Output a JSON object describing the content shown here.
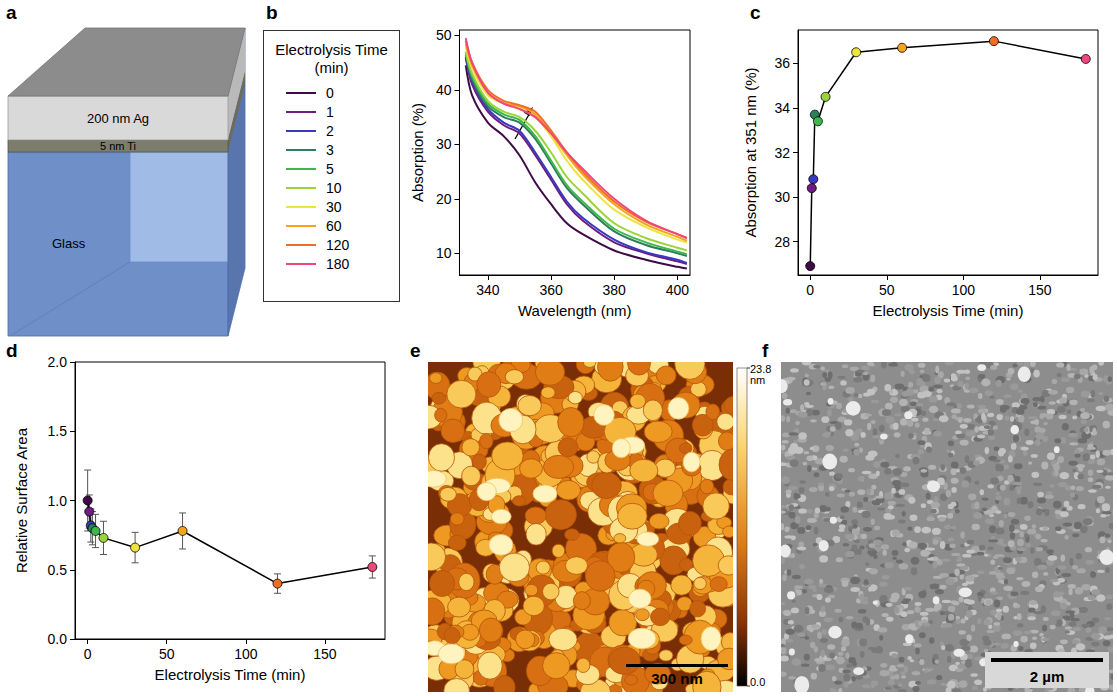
{
  "schematic": {
    "panel": "a",
    "layers": [
      "200 nm Ag",
      "5 nm Ti",
      "Glass"
    ]
  },
  "chart_data": [
    {
      "panel": "b",
      "type": "line",
      "x_label": "Wavelength (nm)",
      "y_label": "Absorption (%)",
      "legend": "left",
      "legend_title": "Electrolysis Time (min)",
      "x": [
        333,
        335,
        340,
        345,
        350,
        355,
        360,
        365,
        370,
        380,
        390,
        400,
        403
      ],
      "series": [
        {
          "name": "0",
          "color": "#3d0b46",
          "values": [
            44.5,
            39,
            34,
            31.5,
            28,
            23,
            19,
            15.5,
            13.5,
            10.5,
            8.8,
            7.5,
            7.2
          ]
        },
        {
          "name": "1",
          "color": "#6e1c80",
          "values": [
            46,
            41,
            36,
            33.5,
            32,
            28,
            23.5,
            19,
            16,
            12,
            10,
            8.5,
            8
          ]
        },
        {
          "name": "2",
          "color": "#3838c0",
          "values": [
            46,
            41.5,
            36.5,
            34,
            32.5,
            28.5,
            24,
            19.5,
            16.5,
            12.5,
            10.2,
            8.8,
            8.2
          ]
        },
        {
          "name": "3",
          "color": "#2e7d5b",
          "values": [
            46.5,
            42,
            37,
            35,
            34,
            31,
            26.5,
            22,
            19,
            14,
            11.5,
            10,
            9.5
          ]
        },
        {
          "name": "5",
          "color": "#3cb84a",
          "values": [
            47,
            42.5,
            37.5,
            35.5,
            34.5,
            31.5,
            27,
            22.5,
            19.5,
            14.5,
            12,
            10.3,
            9.8
          ]
        },
        {
          "name": "10",
          "color": "#9ad43a",
          "values": [
            47,
            43,
            38,
            36,
            35,
            32.5,
            28.5,
            24,
            21,
            15.5,
            12.8,
            11,
            10.5
          ]
        },
        {
          "name": "30",
          "color": "#ede442",
          "values": [
            48,
            44,
            39,
            37.5,
            36.5,
            35,
            31.5,
            27,
            23.5,
            18,
            14.8,
            12.5,
            12
          ]
        },
        {
          "name": "60",
          "color": "#f7a41d",
          "values": [
            48.5,
            44.5,
            39.5,
            37.5,
            37,
            35.5,
            32,
            28,
            24.5,
            19,
            15.3,
            13,
            12.3
          ]
        },
        {
          "name": "120",
          "color": "#f26d22",
          "values": [
            49,
            45,
            40,
            38,
            37.2,
            36,
            32.5,
            28.5,
            25,
            19.5,
            15.8,
            13.5,
            12.8
          ]
        },
        {
          "name": "180",
          "color": "#f0477a",
          "values": [
            49.5,
            45,
            39.5,
            37.5,
            36.5,
            35,
            32,
            28.5,
            25.5,
            20,
            16,
            13.5,
            12.8
          ]
        }
      ],
      "xlim": [
        331,
        404
      ],
      "xticks": [
        340,
        360,
        380,
        400
      ],
      "ylim": [
        6,
        51
      ],
      "yticks": [
        10,
        20,
        30,
        40,
        50
      ]
    },
    {
      "panel": "c",
      "type": "line",
      "marker": "circle",
      "color": "#000000",
      "colors": [
        "#3d0b46",
        "#6e1c80",
        "#3838c0",
        "#2e7d5b",
        "#3cb84a",
        "#9ad43a",
        "#ede442",
        "#f7a41d",
        "#f26d22",
        "#f0477a"
      ],
      "x_label": "Electrolysis Time (min)",
      "y_label": "Absorption at 351 nm (%)",
      "x": [
        0,
        1,
        2,
        3,
        5,
        10,
        30,
        60,
        120,
        180
      ],
      "values": [
        26.9,
        30.4,
        30.8,
        33.7,
        33.4,
        34.5,
        36.5,
        36.7,
        37.0,
        36.2
      ],
      "xlim": [
        -8,
        188
      ],
      "xticks": [
        0,
        50,
        100,
        150
      ],
      "ylim": [
        26.5,
        37.5
      ],
      "yticks": [
        28,
        30,
        32,
        34,
        36
      ]
    },
    {
      "panel": "d",
      "type": "line",
      "marker": "circle",
      "color": "#000000",
      "colors": [
        "#3d0b46",
        "#6e1c80",
        "#3838c0",
        "#2e7d5b",
        "#3cb84a",
        "#9ad43a",
        "#ede442",
        "#f7a41d",
        "#f26d22",
        "#f0477a"
      ],
      "x_label": "Electrolysis Time (min)",
      "y_label": "Relative Surface Area",
      "x": [
        0,
        1,
        2,
        3,
        5,
        10,
        30,
        60,
        120,
        180
      ],
      "values": [
        1.0,
        0.92,
        0.82,
        0.8,
        0.78,
        0.73,
        0.66,
        0.78,
        0.4,
        0.52
      ],
      "errors": [
        0.22,
        0.12,
        0.12,
        0.12,
        0.12,
        0.12,
        0.11,
        0.13,
        0.07,
        0.08
      ],
      "xlim": [
        -8,
        188
      ],
      "xticks": [
        0,
        50,
        100,
        150
      ],
      "ylim": [
        0,
        2
      ],
      "yticks": [
        {
          "value": 0,
          "label": "0.0"
        },
        0.5,
        {
          "value": 1,
          "label": "1.0"
        },
        1.5,
        {
          "value": 2,
          "label": "2.0"
        }
      ]
    }
  ],
  "afm_image": {
    "panel": "e",
    "scale_bar": "300 nm",
    "colorbar_ticks": [
      {
        "value": 0,
        "label": "0.0"
      },
      23.8
    ],
    "colorbar_unit": "nm"
  },
  "sem_image": {
    "panel": "f",
    "scale_bar": "2 µm"
  }
}
